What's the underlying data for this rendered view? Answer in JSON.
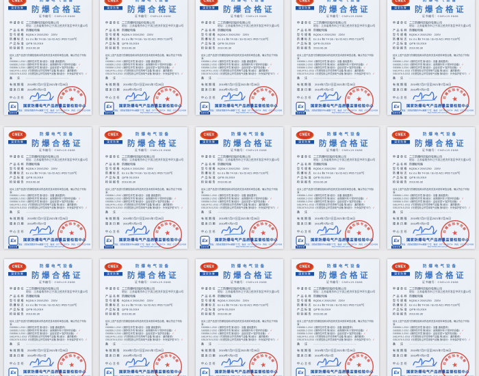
{
  "window": {
    "background": "#e8e8ea",
    "grid_cols": 5,
    "grid_rows": 3,
    "tile_count": 15
  },
  "certificate": {
    "logo": {
      "name": "CNEX",
      "banner": "国家防爆",
      "ellipse_red": "#d1341f",
      "ellipse_gold": "#f0a63c",
      "banner_blue": "#1e50a2"
    },
    "header": {
      "supertitle": "防爆电气设备",
      "title": "防爆合格证",
      "color": "#3b74c0"
    },
    "cert_no": {
      "label": "证书编号：",
      "value": "CNEx19.0688"
    },
    "fields": [
      {
        "label": "申请单位",
        "value": "二工防爆科技股份有限公司",
        "extra": "地址：江苏省南京市江宁滨江经济开发区中环大道10号"
      },
      {
        "label": "产品名称",
        "value": "防爆配电箱"
      },
      {
        "label": "型号规格",
        "value": "BQD8-X 200/1250　220V"
      },
      {
        "label": "防爆标志",
        "value": "Ex d e ⅡB T4 Gb / Ex tD A21 IP65 T130℃"
      },
      {
        "label": "产品标准",
        "value": "Q/FB 03-2019"
      },
      {
        "label": "检验报告",
        "value": "2019.06.30"
      }
    ],
    "statement": "经对上述产品进行防爆检验和对样品有关技术资料审查合格，确认符合下列标准：",
    "standards": [
      {
        "text": "GB3836.1-2010《爆炸性环境 第1部分：设备 通用要求》",
        "check": ""
      },
      {
        "text": "GB3836.2-2010《爆炸性环境 第2部分：由隔爆外壳\"d\"保护的设备》",
        "check": "√"
      },
      {
        "text": "GB3836.3-2010《爆炸性环境 第3部分：由增安型\"e\"保护的设备》",
        "check": "√"
      },
      {
        "text": "GB12476.1-2013《可燃性粉尘环境用电气设备 第1部分：通用要求》",
        "check": ""
      },
      {
        "text": "GB12476.5-2013《可燃性粉尘环境用电气设备 第5部分：外壳保护型\"tD\"》",
        "check": "√"
      }
    ],
    "remark": {
      "label": "备　注",
      "value": "——————————————"
    },
    "validity": {
      "label": "有效期限",
      "value": "2019年7月27日至2021年7月26日"
    },
    "issue": {
      "label": "颁发日期",
      "value": "2019年7月27日"
    },
    "director": {
      "label": "中心主任"
    },
    "stamp": {
      "color": "#cf3b30",
      "star": "★",
      "chars": [
        "防",
        "爆",
        "检",
        "验",
        "专",
        "用",
        "章"
      ]
    },
    "footer": {
      "ex": "Ex",
      "ex_sub": "国家防爆",
      "name": "国家防爆电气产品质量监督检验中心",
      "name_color": "#1d4ea0",
      "contact": "地址：河南省南阳市中州西路777号　电话：0377-63239734　传真：0377-63224389　http://www.cnex.com.cn"
    }
  }
}
